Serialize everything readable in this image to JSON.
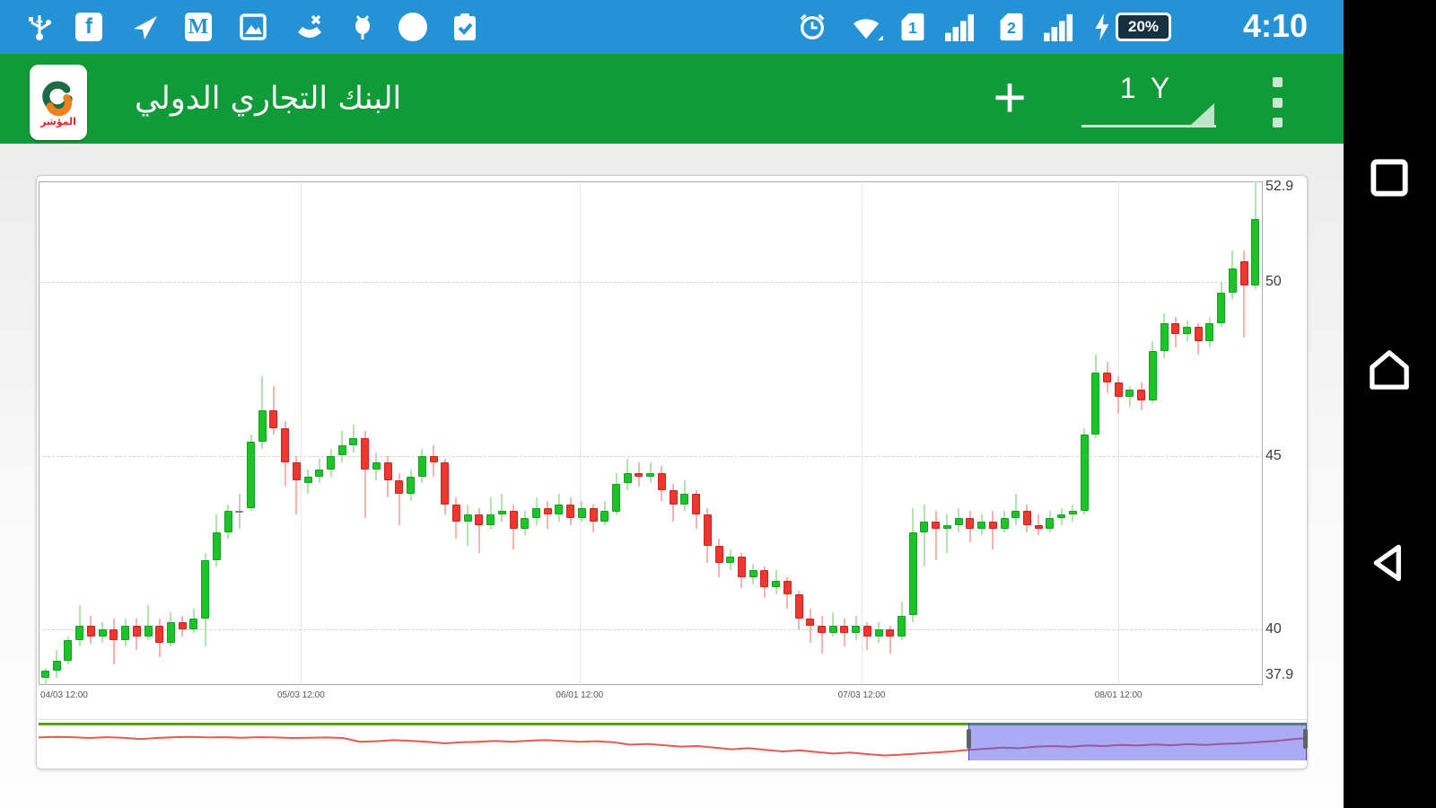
{
  "status_bar": {
    "left_icons": [
      "usb-icon",
      "facebook-icon",
      "send-icon",
      "gmail-icon",
      "gallery-icon",
      "missed-call-icon",
      "device-icon",
      "circle-icon",
      "clipboard-icon"
    ],
    "right_icons": [
      "alarm-icon",
      "wifi-icon",
      "sim1-icon",
      "signal1-icon",
      "sim2-icon",
      "signal2-icon",
      "charging-bolt-icon",
      "battery-icon"
    ],
    "sim1": "1",
    "sim2": "2",
    "battery": "20%",
    "time": "4:10"
  },
  "app_bar": {
    "title": "البنك التجاري الدولي",
    "logo_text": "المؤشر",
    "plus_label": "+",
    "range_selector": "1 Y",
    "overflow_icon": "three-dots"
  },
  "android_nav": {
    "buttons": [
      "recents",
      "home",
      "back"
    ]
  },
  "chart_data": {
    "type": "candlestick",
    "title": "البنك التجاري الدولي",
    "period": "1 Y",
    "y_axis": {
      "ticks": [
        52.9,
        50,
        45,
        40,
        37.9
      ],
      "gridlines": [
        50,
        45,
        40
      ],
      "range": [
        37.9,
        52.9
      ]
    },
    "x_axis": {
      "labels": [
        {
          "text": "04/03 12:00",
          "i": 0,
          "grid": false,
          "align": "left"
        },
        {
          "text": "05/03 12:00",
          "i": 22.4,
          "grid": true,
          "align": "center"
        },
        {
          "text": "06/01 12:00",
          "i": 46.8,
          "grid": true,
          "align": "center"
        },
        {
          "text": "07/03 12:00",
          "i": 71.5,
          "grid": true,
          "align": "center"
        },
        {
          "text": "08/01 12:00",
          "i": 94,
          "grid": true,
          "align": "center"
        }
      ]
    },
    "colors": {
      "up": "#1ec32a",
      "up_border": "#12a01e",
      "up_wick": "#b2e4b0",
      "down": "#ee372f",
      "down_border": "#c7251f",
      "down_wick": "#f0b5ae",
      "neutral": "#9b9b9b",
      "neutral_border": "#828282",
      "neutral_wick": "#c9c9c9",
      "nav_line": "#e25a52",
      "nav_selection": "#5656ec",
      "nav_topline": "#57a011"
    },
    "neutral_indices": [
      17
    ],
    "candles": [
      [
        38.6,
        38.9,
        38.4,
        38.8
      ],
      [
        38.8,
        39.4,
        38.6,
        39.1
      ],
      [
        39.1,
        39.8,
        39.0,
        39.7
      ],
      [
        39.7,
        40.7,
        39.5,
        40.1
      ],
      [
        40.1,
        40.4,
        39.6,
        39.8
      ],
      [
        39.8,
        40.2,
        39.6,
        40.0
      ],
      [
        40.0,
        40.3,
        39.0,
        39.7
      ],
      [
        39.7,
        40.3,
        39.5,
        40.1
      ],
      [
        40.1,
        40.3,
        39.4,
        39.8
      ],
      [
        39.8,
        40.7,
        39.7,
        40.1
      ],
      [
        40.1,
        40.3,
        39.2,
        39.6
      ],
      [
        39.6,
        40.5,
        39.5,
        40.2
      ],
      [
        40.2,
        40.4,
        39.8,
        40.0
      ],
      [
        40.0,
        40.6,
        39.9,
        40.3
      ],
      [
        40.3,
        42.2,
        39.5,
        42.0
      ],
      [
        42.0,
        43.3,
        41.8,
        42.8
      ],
      [
        42.8,
        43.6,
        42.6,
        43.4
      ],
      [
        43.4,
        43.9,
        42.9,
        43.4
      ],
      [
        43.5,
        45.6,
        43.4,
        45.4
      ],
      [
        45.4,
        47.3,
        45.2,
        46.3
      ],
      [
        46.3,
        47.0,
        45.6,
        45.8
      ],
      [
        45.8,
        46.0,
        44.1,
        44.8
      ],
      [
        44.8,
        45.0,
        43.3,
        44.3
      ],
      [
        44.2,
        44.6,
        43.9,
        44.4
      ],
      [
        44.4,
        44.9,
        44.2,
        44.6
      ],
      [
        44.6,
        45.2,
        44.4,
        45.0
      ],
      [
        45.0,
        45.7,
        44.8,
        45.3
      ],
      [
        45.3,
        45.9,
        45.1,
        45.5
      ],
      [
        45.5,
        45.7,
        43.2,
        44.6
      ],
      [
        44.6,
        45.1,
        44.3,
        44.8
      ],
      [
        44.8,
        45.0,
        43.8,
        44.3
      ],
      [
        44.3,
        44.5,
        43.0,
        43.9
      ],
      [
        43.9,
        44.6,
        43.7,
        44.4
      ],
      [
        44.4,
        45.2,
        44.2,
        45.0
      ],
      [
        45.0,
        45.3,
        44.4,
        44.8
      ],
      [
        44.8,
        44.9,
        43.3,
        43.6
      ],
      [
        43.6,
        43.8,
        42.6,
        43.1
      ],
      [
        43.1,
        43.6,
        42.4,
        43.3
      ],
      [
        43.3,
        43.5,
        42.2,
        43.0
      ],
      [
        43.0,
        43.8,
        42.9,
        43.3
      ],
      [
        43.3,
        43.9,
        43.1,
        43.4
      ],
      [
        43.4,
        43.6,
        42.3,
        42.9
      ],
      [
        42.9,
        43.4,
        42.7,
        43.2
      ],
      [
        43.2,
        43.8,
        43.0,
        43.5
      ],
      [
        43.5,
        43.7,
        42.9,
        43.3
      ],
      [
        43.3,
        43.9,
        43.1,
        43.6
      ],
      [
        43.6,
        43.8,
        43.0,
        43.2
      ],
      [
        43.2,
        43.7,
        43.1,
        43.5
      ],
      [
        43.5,
        43.6,
        42.8,
        43.1
      ],
      [
        43.1,
        43.7,
        43.0,
        43.4
      ],
      [
        43.4,
        44.5,
        43.3,
        44.2
      ],
      [
        44.2,
        44.9,
        44.0,
        44.5
      ],
      [
        44.5,
        44.8,
        44.1,
        44.4
      ],
      [
        44.4,
        44.8,
        44.2,
        44.5
      ],
      [
        44.5,
        44.7,
        43.7,
        44.0
      ],
      [
        44.0,
        44.2,
        43.1,
        43.6
      ],
      [
        43.6,
        44.3,
        43.4,
        43.9
      ],
      [
        43.9,
        44.0,
        42.9,
        43.3
      ],
      [
        43.3,
        43.5,
        41.9,
        42.4
      ],
      [
        42.4,
        42.6,
        41.5,
        41.9
      ],
      [
        41.9,
        42.3,
        41.7,
        42.1
      ],
      [
        42.1,
        42.2,
        41.2,
        41.5
      ],
      [
        41.5,
        41.9,
        41.3,
        41.7
      ],
      [
        41.7,
        41.8,
        40.9,
        41.2
      ],
      [
        41.2,
        41.7,
        41.0,
        41.4
      ],
      [
        41.4,
        41.5,
        40.6,
        41.0
      ],
      [
        41.0,
        41.1,
        40.0,
        40.3
      ],
      [
        40.3,
        40.6,
        39.6,
        40.1
      ],
      [
        40.1,
        40.4,
        39.3,
        39.9
      ],
      [
        39.9,
        40.5,
        39.8,
        40.1
      ],
      [
        40.1,
        40.3,
        39.5,
        39.9
      ],
      [
        39.9,
        40.4,
        39.7,
        40.1
      ],
      [
        40.1,
        40.2,
        39.4,
        39.8
      ],
      [
        39.8,
        40.2,
        39.6,
        40.0
      ],
      [
        40.0,
        40.1,
        39.3,
        39.8
      ],
      [
        39.8,
        40.8,
        39.7,
        40.4
      ],
      [
        40.4,
        43.5,
        40.2,
        42.8
      ],
      [
        42.8,
        43.6,
        41.8,
        43.1
      ],
      [
        43.1,
        43.4,
        42.0,
        42.9
      ],
      [
        42.9,
        43.3,
        42.2,
        43.0
      ],
      [
        43.0,
        43.5,
        42.8,
        43.2
      ],
      [
        43.2,
        43.4,
        42.5,
        42.9
      ],
      [
        42.9,
        43.3,
        42.7,
        43.1
      ],
      [
        43.1,
        43.4,
        42.3,
        42.9
      ],
      [
        42.9,
        43.4,
        42.8,
        43.2
      ],
      [
        43.2,
        43.9,
        43.0,
        43.4
      ],
      [
        43.4,
        43.6,
        42.8,
        43.0
      ],
      [
        43.0,
        43.3,
        42.7,
        42.9
      ],
      [
        42.9,
        43.4,
        42.8,
        43.2
      ],
      [
        43.2,
        43.5,
        43.0,
        43.3
      ],
      [
        43.3,
        43.6,
        43.1,
        43.4
      ],
      [
        43.4,
        45.8,
        43.3,
        45.6
      ],
      [
        45.6,
        47.9,
        45.5,
        47.4
      ],
      [
        47.4,
        47.7,
        46.8,
        47.1
      ],
      [
        47.1,
        47.3,
        46.2,
        46.7
      ],
      [
        46.7,
        47.0,
        46.4,
        46.9
      ],
      [
        46.9,
        47.1,
        46.3,
        46.6
      ],
      [
        46.6,
        48.3,
        46.5,
        48.0
      ],
      [
        48.0,
        49.1,
        47.8,
        48.8
      ],
      [
        48.8,
        49.0,
        48.1,
        48.5
      ],
      [
        48.5,
        48.9,
        48.3,
        48.7
      ],
      [
        48.7,
        48.8,
        47.9,
        48.3
      ],
      [
        48.3,
        49.0,
        48.1,
        48.8
      ],
      [
        48.8,
        50.0,
        48.7,
        49.7
      ],
      [
        49.7,
        50.9,
        49.5,
        50.4
      ],
      [
        50.6,
        50.9,
        48.4,
        49.9
      ],
      [
        49.9,
        52.9,
        49.8,
        51.8
      ]
    ],
    "navigator": {
      "selection_start_fraction": 0.733,
      "points": [
        0.28,
        0.26,
        0.27,
        0.3,
        0.27,
        0.29,
        0.34,
        0.3,
        0.27,
        0.26,
        0.28,
        0.27,
        0.29,
        0.27,
        0.28,
        0.3,
        0.29,
        0.28,
        0.3,
        0.44,
        0.42,
        0.38,
        0.41,
        0.44,
        0.5,
        0.46,
        0.44,
        0.41,
        0.44,
        0.4,
        0.38,
        0.41,
        0.44,
        0.42,
        0.46,
        0.55,
        0.52,
        0.57,
        0.62,
        0.6,
        0.66,
        0.72,
        0.68,
        0.74,
        0.8,
        0.76,
        0.82,
        0.88,
        0.84,
        0.9,
        0.95,
        0.92,
        0.88,
        0.84,
        0.8,
        0.74,
        0.7,
        0.66,
        0.68,
        0.62,
        0.6,
        0.63,
        0.58,
        0.6,
        0.56,
        0.58,
        0.54,
        0.57,
        0.53,
        0.56,
        0.52,
        0.5,
        0.46,
        0.42,
        0.36,
        0.3
      ]
    }
  }
}
